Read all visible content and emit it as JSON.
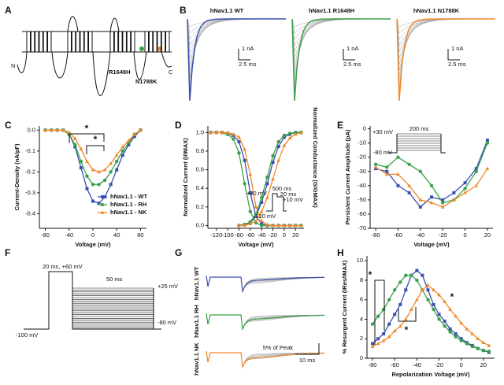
{
  "figure": {
    "panel_labels": [
      "A",
      "B",
      "C",
      "D",
      "E",
      "F",
      "G",
      "H"
    ]
  },
  "topology": {
    "n_term": "N",
    "c_term": "C",
    "mutations": [
      "R1648H",
      "N1788K"
    ]
  },
  "traces": {
    "titles": [
      "hNav1.1 WT",
      "hNav1.1 R1648H",
      "hNav1.1 N1788K"
    ],
    "scale_current": [
      "1 nA",
      "1 nA",
      "1 nA"
    ],
    "scale_time": [
      "2.5 ms",
      "2.5 ms",
      "2.5 ms"
    ]
  },
  "protocol": {
    "labels": [
      "20 ms, +60 mV",
      "50 ms",
      "+25 mV",
      "-80 mV",
      "-100 mV"
    ]
  },
  "resurgent_traces": {
    "labels": [
      "hNav1.1 WT",
      "hNav1.1 RH",
      "hNav1.1 NK"
    ],
    "scale_amplitude": "5% of Peak",
    "scale_time": "10 ms"
  },
  "chart_data": [
    {
      "type": "line",
      "xlabel": "Voltage (mV)",
      "ylabel": "Current-Density (nA/pF)",
      "x": [
        -80,
        -70,
        -60,
        -50,
        -40,
        -30,
        -20,
        -10,
        0,
        10,
        20,
        30,
        40,
        50,
        60,
        70,
        80
      ],
      "series": [
        {
          "name": "hNav1.1 - WT",
          "color": "#3a4fb0",
          "marker": "square",
          "values": [
            0,
            0,
            0,
            0,
            -0.02,
            -0.08,
            -0.18,
            -0.28,
            -0.34,
            -0.35,
            -0.32,
            -0.26,
            -0.19,
            -0.12,
            -0.07,
            -0.03,
            0
          ]
        },
        {
          "name": "hNav1.1 - RH",
          "color": "#3aa04a",
          "marker": "circle",
          "values": [
            0,
            0,
            0,
            0,
            -0.02,
            -0.07,
            -0.15,
            -0.22,
            -0.26,
            -0.26,
            -0.24,
            -0.2,
            -0.15,
            -0.1,
            -0.06,
            -0.02,
            0
          ]
        },
        {
          "name": "hNav1.1 - NK",
          "color": "#f0892a",
          "marker": "triangle",
          "values": [
            0,
            0,
            0,
            0,
            -0.01,
            -0.04,
            -0.09,
            -0.15,
            -0.19,
            -0.2,
            -0.19,
            -0.16,
            -0.12,
            -0.08,
            -0.05,
            -0.02,
            0
          ]
        }
      ],
      "xlim": [
        -90,
        90
      ],
      "xticks": [
        -80,
        -40,
        0,
        40,
        80
      ],
      "ylim": [
        -0.47,
        0.02
      ],
      "yticks": [
        {
          "value": 0,
          "label": "0.0"
        },
        {
          "value": -0.1,
          "label": "-0.1"
        },
        {
          "value": -0.2,
          "label": "-0.2"
        },
        {
          "value": -0.3,
          "label": "-0.3"
        },
        {
          "value": -0.4,
          "label": "-0.4"
        }
      ],
      "legend": "lower right",
      "annotations": [
        "*",
        "*"
      ]
    },
    {
      "type": "line",
      "xlabel": "Voltage (mV)",
      "ylabel": "Normalized Current (I/IMAX)",
      "y2label": "Normalized Conductance (G/GMAX)",
      "x": [
        -130,
        -120,
        -110,
        -100,
        -90,
        -80,
        -70,
        -60,
        -50,
        -40,
        -30,
        -20,
        -10,
        0,
        10,
        20,
        30
      ],
      "series": [
        {
          "color": "#3a4fb0",
          "marker": "square",
          "values": [
            1,
            1,
            1,
            0.99,
            0.97,
            0.9,
            0.7,
            0.35,
            0.1,
            0.02,
            0,
            0,
            0,
            0,
            0,
            0,
            0
          ]
        },
        {
          "color": "#3aa04a",
          "marker": "circle",
          "values": [
            1,
            1,
            1,
            0.98,
            0.93,
            0.78,
            0.45,
            0.15,
            0.03,
            0,
            0,
            0,
            0,
            0,
            0,
            0,
            0
          ]
        },
        {
          "color": "#f0892a",
          "marker": "triangle",
          "values": [
            1,
            1,
            1,
            1,
            0.98,
            0.95,
            0.82,
            0.55,
            0.2,
            0.05,
            0.01,
            0,
            0,
            0,
            0,
            0,
            0
          ]
        },
        {
          "color": "#3a4fb0",
          "marker": "square",
          "values": [
            null,
            null,
            null,
            null,
            null,
            0,
            0.01,
            0.03,
            0.1,
            0.25,
            0.45,
            0.68,
            0.85,
            0.95,
            0.98,
            1,
            1
          ]
        },
        {
          "color": "#3aa04a",
          "marker": "circle",
          "values": [
            null,
            null,
            null,
            null,
            null,
            0,
            0.01,
            0.04,
            0.12,
            0.3,
            0.52,
            0.75,
            0.9,
            0.97,
            0.99,
            1,
            1
          ]
        },
        {
          "color": "#f0892a",
          "marker": "triangle",
          "values": [
            null,
            null,
            null,
            null,
            null,
            0,
            0,
            0.02,
            0.05,
            0.15,
            0.3,
            0.5,
            0.7,
            0.86,
            0.94,
            0.98,
            1
          ]
        }
      ],
      "xlim": [
        -135,
        35
      ],
      "xticks": [
        -120,
        -100,
        -80,
        -60,
        -40,
        -20,
        0,
        20
      ],
      "ylim": [
        -0.03,
        1.07
      ],
      "yticks": [
        {
          "value": 0,
          "label": "0.0"
        },
        {
          "value": 0.2,
          "label": "0.2"
        },
        {
          "value": 0.4,
          "label": "0.4"
        },
        {
          "value": 0.6,
          "label": "0.6"
        },
        {
          "value": 0.8,
          "label": "0.8"
        },
        {
          "value": 1,
          "label": "1.0"
        }
      ],
      "annotations": [
        "+30 mV",
        "500 ms",
        "20 ms",
        "+10 mV",
        "-120 mV"
      ]
    },
    {
      "type": "line",
      "xlabel": "Voltage (mV)",
      "ylabel": "Persistent Current Amplitude (pA)",
      "x": [
        -80,
        -70,
        -60,
        -50,
        -40,
        -30,
        -20,
        -10,
        0,
        10,
        20
      ],
      "series": [
        {
          "color": "#3a4fb0",
          "marker": "square",
          "values": [
            -28,
            -30,
            -40,
            -45,
            -55,
            -48,
            -50,
            -45,
            -38,
            -28,
            -8
          ]
        },
        {
          "color": "#3aa04a",
          "marker": "circle",
          "values": [
            -25,
            -27,
            -20,
            -25,
            -30,
            -40,
            -52,
            -50,
            -42,
            -30,
            -10
          ]
        },
        {
          "color": "#f0892a",
          "marker": "triangle",
          "values": [
            -27,
            -32,
            -32,
            -40,
            -50,
            -52,
            -55,
            -50,
            -45,
            -40,
            -28
          ]
        }
      ],
      "xlim": [
        -85,
        25
      ],
      "xticks": [
        -80,
        -60,
        -40,
        -20,
        0,
        20
      ],
      "ylim": [
        -70,
        2
      ],
      "yticks": [
        0,
        -10,
        -20,
        -30,
        -40,
        -50,
        -60,
        -70
      ],
      "annotations": [
        "+30 mV",
        "200 ms",
        "-80 mV"
      ]
    },
    {
      "type": "line",
      "xlabel": "Repolarization Voltage (mV)",
      "ylabel": "% Resurgent Current (IRes/IMAX)",
      "x": [
        -80,
        -75,
        -70,
        -65,
        -60,
        -55,
        -50,
        -45,
        -40,
        -35,
        -30,
        -25,
        -20,
        -15,
        -10,
        -5,
        0,
        5,
        10,
        15,
        20,
        25
      ],
      "series": [
        {
          "color": "#3a4fb0",
          "marker": "square",
          "values": [
            1.5,
            2,
            2.5,
            3.5,
            4.5,
            5.5,
            7,
            8.5,
            9,
            8.5,
            7,
            5.5,
            4.5,
            3.8,
            3,
            2.5,
            2,
            1.6,
            1.3,
            1,
            0.8,
            0.6
          ]
        },
        {
          "color": "#3aa04a",
          "marker": "circle",
          "values": [
            3.5,
            4.3,
            5,
            6,
            7,
            7.8,
            8.5,
            8.5,
            8,
            7,
            6,
            5,
            4,
            3.3,
            2.7,
            2.2,
            1.8,
            1.5,
            1.2,
            1,
            0.8,
            0.7
          ]
        },
        {
          "color": "#f0892a",
          "marker": "triangle",
          "values": [
            1.2,
            1.5,
            1.8,
            2.2,
            2.8,
            3.3,
            4,
            5,
            6,
            7,
            7.5,
            7,
            6.5,
            5.8,
            5,
            4.3,
            3.6,
            3,
            2.5,
            2,
            1.6,
            1.3
          ]
        }
      ],
      "xlim": [
        -85,
        30
      ],
      "xticks": [
        -80,
        -60,
        -40,
        -20,
        0,
        20
      ],
      "ylim": [
        0,
        10.5
      ],
      "yticks": [
        0,
        2,
        4,
        6,
        8,
        10
      ],
      "annotations": [
        "*",
        "*",
        "*"
      ]
    }
  ]
}
